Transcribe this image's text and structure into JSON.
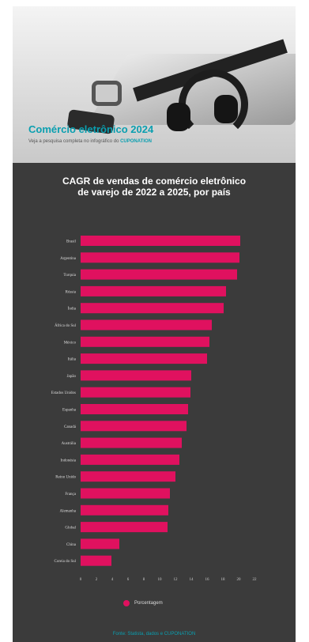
{
  "header": {
    "headline": "Comércio eletrônico 2024",
    "subline_prefix": "Veja a pesquisa completa no infográfico do",
    "brand": "CUPONATION"
  },
  "chart_data": {
    "type": "bar",
    "orientation": "horizontal",
    "title_line1": "CAGR de vendas de comércio eletrônico",
    "title_line2": "de varejo de 2022 a 2025, por país",
    "categories": [
      "Brasil",
      "Argentina",
      "Turquia",
      "Rússia",
      "Índia",
      "África do Sul",
      "México",
      "Itália",
      "Japão",
      "Estados Unidos",
      "Espanha",
      "Canadá",
      "Austrália",
      "Indonésia",
      "Reino Unido",
      "França",
      "Alemanha",
      "Global",
      "China",
      "Coreia do Sul"
    ],
    "series": [
      {
        "name": "Porcentagem",
        "color": "#e0115f",
        "values": [
          20.2,
          20.1,
          19.8,
          18.4,
          18.1,
          16.6,
          16.3,
          16.0,
          14.0,
          13.9,
          13.6,
          13.4,
          12.8,
          12.5,
          12.0,
          11.3,
          11.1,
          11.0,
          4.9,
          3.9
        ]
      }
    ],
    "xticks": [
      0,
      2,
      4,
      6,
      8,
      10,
      12,
      14,
      16,
      18,
      20,
      22
    ],
    "xlim": [
      0,
      22
    ],
    "legend_position": "bottom",
    "grid": false
  },
  "source": "Fonte: Statista, dados e CUPONATION"
}
